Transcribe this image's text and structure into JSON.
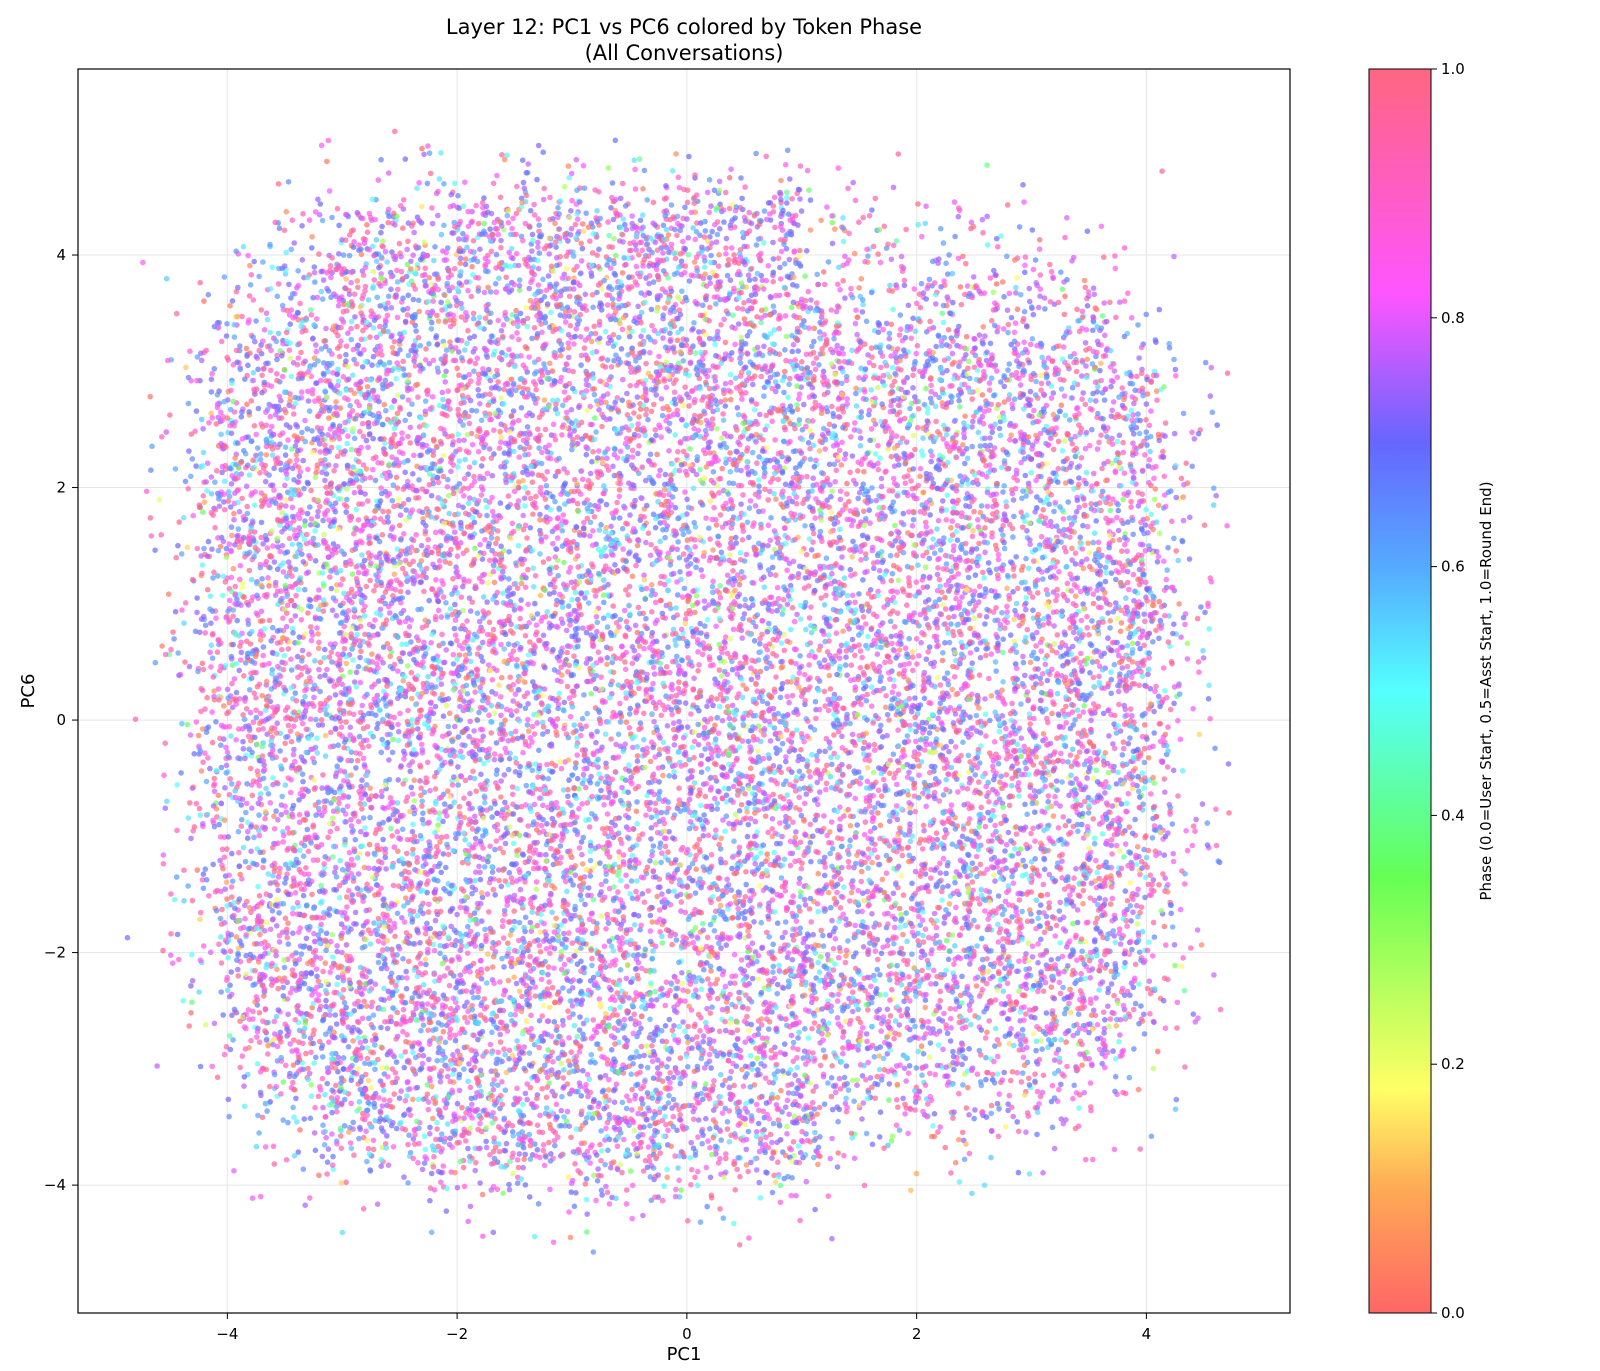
{
  "chart_data": {
    "type": "scatter",
    "title": "Layer 12: PC1 vs PC6 colored by Token Phase",
    "subtitle": "(All Conversations)",
    "xlabel": "PC1",
    "ylabel": "PC6",
    "xlim": [
      -5.3,
      5.25
    ],
    "ylim": [
      -5.1,
      5.6
    ],
    "xticks": [
      -4,
      -2,
      0,
      2,
      4
    ],
    "yticks": [
      -4,
      -2,
      0,
      2,
      4
    ],
    "xtick_labels": [
      "−4",
      "−2",
      "0",
      "2",
      "4"
    ],
    "ytick_labels": [
      "−4",
      "−2",
      "0",
      "2",
      "4"
    ],
    "grid": true,
    "point_count_approx": 20000,
    "point_alpha": 0.7,
    "distribution": {
      "shape": "roughly rectangular cloud with rounded corners",
      "x_range": [
        -4.9,
        4.75
      ],
      "y_range": [
        -4.65,
        5.15
      ],
      "core_x_range": [
        -3.8,
        3.8
      ],
      "core_y_range": [
        -3.2,
        3.8
      ],
      "dominant_phases": [
        0.65,
        0.75,
        0.85,
        0.95
      ],
      "rare_phases": [
        0.1,
        0.2,
        0.3,
        0.45
      ]
    },
    "colorbar": {
      "label": "Phase (0.0=User Start, 0.5=Asst Start, 1.0=Round End)",
      "range": [
        0.0,
        1.0
      ],
      "ticks": [
        0.0,
        0.2,
        0.4,
        0.6,
        0.8,
        1.0
      ],
      "tick_labels": [
        "0.0",
        "0.2",
        "0.4",
        "0.6",
        "0.8",
        "1.0"
      ],
      "colormap": "hsv-like",
      "stops": [
        {
          "value": 0.0,
          "color": "#ff6666"
        },
        {
          "value": 0.1,
          "color": "#ffaa55"
        },
        {
          "value": 0.18,
          "color": "#ffff66"
        },
        {
          "value": 0.35,
          "color": "#66ff55"
        },
        {
          "value": 0.5,
          "color": "#55ffff"
        },
        {
          "value": 0.6,
          "color": "#55aaff"
        },
        {
          "value": 0.7,
          "color": "#6666ff"
        },
        {
          "value": 0.82,
          "color": "#ff55ff"
        },
        {
          "value": 1.0,
          "color": "#ff6680"
        }
      ]
    }
  }
}
